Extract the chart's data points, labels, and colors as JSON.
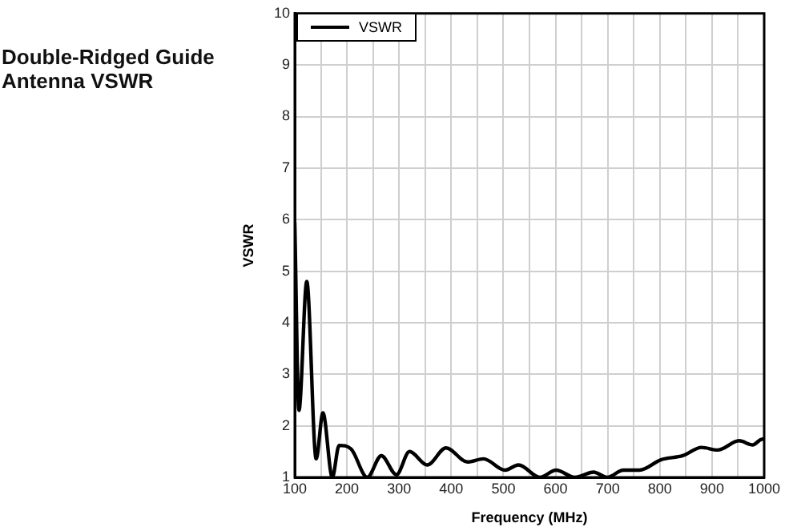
{
  "chart_data": {
    "type": "line",
    "title": "Double-Ridged Guide Antenna VSWR",
    "xlabel": "Frequency (MHz)",
    "ylabel": "VSWR",
    "xlim": [
      100,
      1000
    ],
    "xticks": [
      100,
      200,
      300,
      400,
      500,
      600,
      700,
      800,
      900,
      1000
    ],
    "ylim": [
      1,
      10
    ],
    "yticks": [
      1,
      2,
      3,
      4,
      5,
      6,
      7,
      8,
      9,
      10
    ],
    "grid": true,
    "legend": "top left",
    "marker": "none",
    "line_style": "solid",
    "series": [
      {
        "name": "VSWR",
        "color": "#000000",
        "x": [
          100,
          108,
          123,
          141,
          154,
          172,
          185,
          208,
          239,
          266,
          295,
          320,
          354,
          390,
          431,
          462,
          503,
          529,
          570,
          601,
          637,
          673,
          699,
          730,
          761,
          802,
          844,
          880,
          911,
          952,
          978,
          993,
          1000
        ],
        "values": [
          5.95,
          2.3,
          4.8,
          1.36,
          2.25,
          1.0,
          1.62,
          1.55,
          1.0,
          1.42,
          1.05,
          1.5,
          1.24,
          1.57,
          1.3,
          1.36,
          1.14,
          1.24,
          1.0,
          1.14,
          1.0,
          1.1,
          1.0,
          1.14,
          1.14,
          1.34,
          1.42,
          1.58,
          1.53,
          1.71,
          1.63,
          1.73,
          1.75
        ]
      }
    ]
  }
}
